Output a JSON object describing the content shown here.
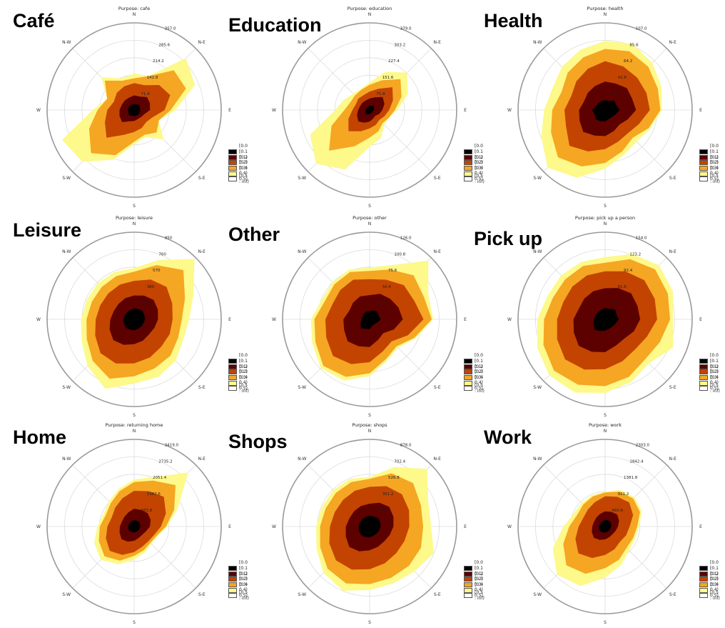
{
  "colors": {
    "bins": [
      "#000000",
      "#5c0000",
      "#c24400",
      "#f5a623",
      "#fdf98a",
      "#ffffff"
    ],
    "ring": "#9a9a9a",
    "grid": "#dcdcdc"
  },
  "legend_entries": [
    "[0.0 : 0.1)",
    "[0.1 : 0.2)",
    "[0.2 : 0.3)",
    "[0.3 : 0.4)",
    "[0.4 : 0.5)",
    "[0.5 : inf)"
  ],
  "direction_labels": [
    "N",
    "N-E",
    "E",
    "S-E",
    "S",
    "S-W",
    "W",
    "N-W"
  ],
  "chart_data": [
    {
      "type": "windrose",
      "label": "Café",
      "title": "Purpose: cafe",
      "radial_ticks": [
        "71.4",
        "142.8",
        "214.2",
        "285.6",
        "357.0"
      ],
      "rmax": 357.0,
      "sectors": 16,
      "cumulative": [
        [
          25,
          25,
          30,
          25,
          25,
          25,
          25,
          25,
          25,
          25,
          30,
          25,
          25,
          25,
          25,
          25
        ],
        [
          60,
          60,
          75,
          70,
          65,
          45,
          40,
          40,
          45,
          50,
          70,
          65,
          60,
          55,
          55,
          55
        ],
        [
          110,
          110,
          145,
          160,
          125,
          80,
          70,
          80,
          90,
          110,
          160,
          130,
          110,
          90,
          100,
          105
        ],
        [
          130,
          150,
          230,
          230,
          150,
          110,
          130,
          110,
          130,
          200,
          250,
          200,
          150,
          120,
          170,
          130
        ],
        [
          150,
          150,
          300,
          270,
          170,
          110,
          170,
          120,
          140,
          220,
          300,
          320,
          170,
          120,
          190,
          140
        ]
      ]
    },
    {
      "type": "windrose",
      "label": "Education",
      "title": "Purpose: education",
      "radial_ticks": [
        "75.8",
        "151.6",
        "227.4",
        "303.2",
        "379.0"
      ],
      "rmax": 379.0,
      "sectors": 16,
      "cumulative": [
        [
          20,
          20,
          25,
          20,
          18,
          15,
          15,
          15,
          18,
          20,
          25,
          20,
          18,
          16,
          15,
          16
        ],
        [
          50,
          60,
          80,
          70,
          55,
          45,
          35,
          40,
          50,
          60,
          70,
          60,
          50,
          45,
          45,
          45
        ],
        [
          80,
          100,
          140,
          110,
          85,
          70,
          60,
          70,
          80,
          100,
          130,
          100,
          75,
          65,
          70,
          70
        ],
        [
          110,
          140,
          190,
          150,
          110,
          90,
          80,
          100,
          120,
          170,
          250,
          180,
          110,
          90,
          90,
          95
        ],
        [
          120,
          180,
          230,
          180,
          120,
          90,
          90,
          130,
          160,
          280,
          330,
          280,
          150,
          120,
          100,
          100
        ]
      ]
    },
    {
      "type": "windrose",
      "label": "Health",
      "title": "Purpose: health",
      "radial_ticks": [
        "21.4",
        "42.8",
        "64.2",
        "85.6",
        "107.0"
      ],
      "rmax": 107.0,
      "sectors": 16,
      "cumulative": [
        [
          12,
          12,
          16,
          15,
          18,
          14,
          12,
          12,
          14,
          15,
          16,
          14,
          16,
          12,
          12,
          12
        ],
        [
          35,
          35,
          38,
          36,
          38,
          30,
          25,
          28,
          32,
          34,
          38,
          34,
          32,
          28,
          30,
          32
        ],
        [
          60,
          58,
          56,
          55,
          55,
          45,
          40,
          42,
          48,
          55,
          62,
          52,
          50,
          45,
          50,
          55
        ],
        [
          75,
          78,
          75,
          70,
          68,
          58,
          48,
          55,
          65,
          75,
          82,
          72,
          65,
          58,
          65,
          70
        ],
        [
          85,
          88,
          82,
          75,
          70,
          60,
          55,
          60,
          72,
          90,
          100,
          85,
          75,
          70,
          75,
          80
        ]
      ]
    },
    {
      "type": "windrose",
      "label": "Leisure",
      "title": "Purpose: leisure",
      "radial_ticks": [
        "190",
        "380",
        "570",
        "760",
        "950"
      ],
      "rmax": 950.0,
      "sectors": 16,
      "cumulative": [
        [
          120,
          120,
          130,
          120,
          120,
          110,
          110,
          110,
          120,
          120,
          130,
          120,
          120,
          110,
          110,
          110
        ],
        [
          260,
          280,
          300,
          280,
          260,
          240,
          230,
          250,
          270,
          300,
          320,
          290,
          260,
          240,
          240,
          250
        ],
        [
          420,
          470,
          500,
          450,
          420,
          420,
          420,
          450,
          480,
          520,
          520,
          460,
          420,
          400,
          400,
          410
        ],
        [
          520,
          640,
          760,
          600,
          520,
          520,
          560,
          580,
          620,
          700,
          640,
          560,
          520,
          500,
          500,
          510
        ],
        [
          560,
          700,
          930,
          700,
          600,
          580,
          640,
          680,
          700,
          820,
          720,
          620,
          580,
          560,
          560,
          560
        ]
      ]
    },
    {
      "type": "windrose",
      "label": "Other",
      "title": "Purpose: other",
      "radial_ticks": [
        "25.2",
        "50.4",
        "75.6",
        "100.8",
        "126.0"
      ],
      "rmax": 126.0,
      "sectors": 16,
      "cumulative": [
        [
          12,
          14,
          16,
          14,
          16,
          12,
          10,
          10,
          14,
          15,
          18,
          14,
          12,
          11,
          12,
          12
        ],
        [
          35,
          40,
          42,
          45,
          48,
          38,
          28,
          32,
          40,
          42,
          45,
          40,
          38,
          32,
          34,
          36
        ],
        [
          58,
          62,
          70,
          70,
          78,
          60,
          45,
          50,
          62,
          70,
          75,
          68,
          64,
          58,
          60,
          62
        ],
        [
          70,
          78,
          90,
          85,
          90,
          70,
          55,
          62,
          78,
          90,
          95,
          85,
          80,
          70,
          72,
          74
        ],
        [
          75,
          85,
          120,
          92,
          92,
          72,
          58,
          65,
          82,
          96,
          100,
          90,
          85,
          75,
          76,
          78
        ]
      ]
    },
    {
      "type": "windrose",
      "label": "Pick up",
      "title": "Purpose: pick up a person",
      "radial_ticks": [
        "30.8",
        "61.6",
        "92.4",
        "123.2",
        "154.0"
      ],
      "rmax": 154.0,
      "sectors": 16,
      "cumulative": [
        [
          20,
          20,
          25,
          22,
          24,
          20,
          18,
          18,
          20,
          22,
          26,
          22,
          20,
          18,
          18,
          18
        ],
        [
          55,
          60,
          65,
          62,
          62,
          55,
          48,
          50,
          58,
          62,
          66,
          60,
          56,
          50,
          52,
          54
        ],
        [
          85,
          92,
          98,
          95,
          92,
          80,
          75,
          80,
          88,
          96,
          100,
          92,
          85,
          80,
          82,
          84
        ],
        [
          100,
          115,
          125,
          120,
          115,
          105,
          100,
          110,
          118,
          125,
          128,
          118,
          108,
          100,
          100,
          102
        ],
        [
          110,
          125,
          135,
          130,
          120,
          130,
          110,
          120,
          130,
          140,
          140,
          130,
          120,
          110,
          110,
          110
        ]
      ]
    },
    {
      "type": "windrose",
      "label": "Home",
      "title": "Purpose: returning home",
      "radial_ticks": [
        "683.8",
        "1367.6",
        "2051.4",
        "2735.2",
        "3419.0"
      ],
      "rmax": 3419.0,
      "sectors": 16,
      "cumulative": [
        [
          250,
          250,
          260,
          250,
          240,
          220,
          220,
          220,
          230,
          240,
          250,
          240,
          230,
          220,
          220,
          230
        ],
        [
          700,
          700,
          750,
          700,
          620,
          500,
          450,
          480,
          560,
          640,
          700,
          620,
          560,
          520,
          540,
          600
        ],
        [
          1400,
          1500,
          1650,
          1350,
          1050,
          850,
          800,
          850,
          1000,
          1200,
          1350,
          1200,
          1050,
          950,
          1050,
          1200
        ],
        [
          1750,
          1950,
          2300,
          1700,
          1250,
          950,
          900,
          1000,
          1150,
          1450,
          1650,
          1500,
          1350,
          1200,
          1300,
          1500
        ],
        [
          1850,
          2100,
          3000,
          1850,
          1300,
          1000,
          950,
          1100,
          1300,
          1600,
          1850,
          1700,
          1450,
          1300,
          1400,
          1600
        ]
      ]
    },
    {
      "type": "windrose",
      "label": "Shops",
      "title": "Purpose: shops",
      "radial_ticks": [
        "175.6",
        "351.2",
        "526.8",
        "702.4",
        "878.0"
      ],
      "rmax": 878.0,
      "sectors": 16,
      "cumulative": [
        [
          110,
          110,
          120,
          115,
          110,
          105,
          100,
          100,
          110,
          115,
          120,
          115,
          110,
          105,
          105,
          105
        ],
        [
          230,
          260,
          280,
          260,
          240,
          220,
          210,
          220,
          240,
          270,
          290,
          260,
          240,
          220,
          220,
          225
        ],
        [
          400,
          440,
          460,
          430,
          400,
          380,
          380,
          400,
          430,
          470,
          480,
          440,
          400,
          380,
          380,
          390
        ],
        [
          480,
          580,
          620,
          560,
          540,
          560,
          560,
          560,
          580,
          620,
          600,
          540,
          500,
          480,
          480,
          485
        ],
        [
          500,
          650,
          820,
          640,
          620,
          700,
          640,
          620,
          640,
          700,
          660,
          580,
          540,
          520,
          520,
          520
        ]
      ]
    },
    {
      "type": "windrose",
      "label": "Work",
      "title": "Purpose: work",
      "radial_ticks": [
        "460.6",
        "921.2",
        "1381.8",
        "1842.4",
        "2303.0"
      ],
      "rmax": 2303.0,
      "sectors": 16,
      "cumulative": [
        [
          180,
          180,
          190,
          170,
          160,
          150,
          150,
          150,
          160,
          170,
          180,
          170,
          160,
          150,
          150,
          160
        ],
        [
          400,
          420,
          450,
          400,
          340,
          300,
          280,
          300,
          340,
          380,
          420,
          380,
          340,
          320,
          330,
          360
        ],
        [
          800,
          850,
          900,
          800,
          650,
          600,
          560,
          650,
          750,
          900,
          1000,
          850,
          700,
          620,
          640,
          700
        ],
        [
          900,
          1000,
          1050,
          1000,
          850,
          800,
          800,
          950,
          1100,
          1350,
          1450,
          1200,
          950,
          800,
          820,
          860
        ],
        [
          920,
          1050,
          1100,
          1050,
          900,
          850,
          900,
          1100,
          1350,
          1700,
          1800,
          1500,
          1100,
          900,
          880,
          900
        ]
      ]
    }
  ]
}
